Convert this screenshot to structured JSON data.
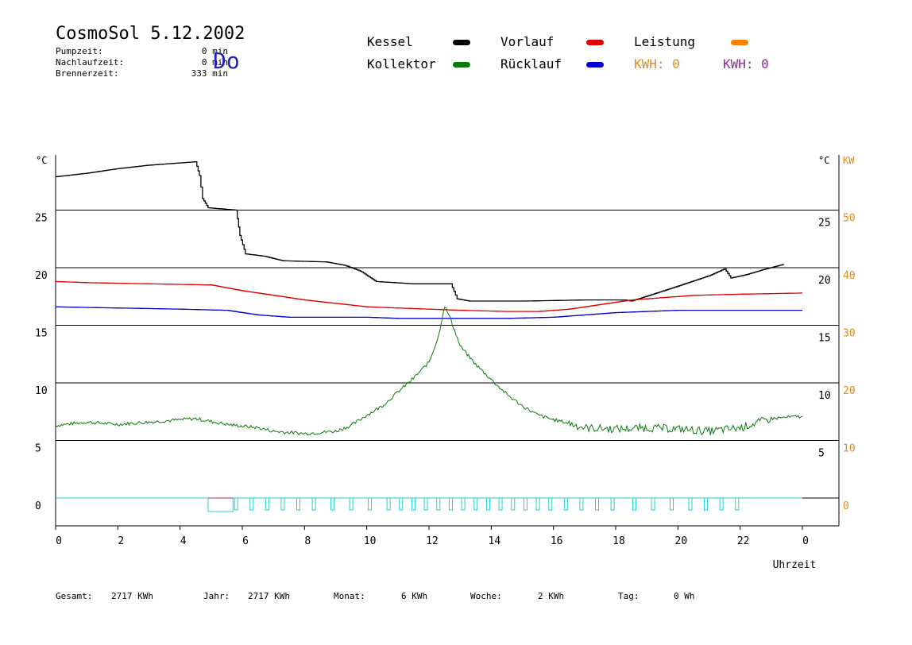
{
  "header": {
    "title": "CosmoSol 5.12.2002",
    "day": "Do",
    "stats": [
      {
        "label": "Pumpzeit:",
        "value": "0 min"
      },
      {
        "label": "Nachlaufzeit:",
        "value": "0 min"
      },
      {
        "label": "Brennerzeit:",
        "value": "333 min"
      }
    ]
  },
  "legend": {
    "items": [
      {
        "label": "Kessel",
        "color": "#000000"
      },
      {
        "label": "Vorlauf",
        "color": "#e00000"
      },
      {
        "label": "Leistung",
        "color": "#ff8000"
      },
      {
        "label": "Kollektor",
        "color": "#0a7a0a"
      },
      {
        "label": "Rücklauf",
        "color": "#0000d0"
      }
    ],
    "kwh1": "KWH: 0",
    "kwh1_color": "#e08a1e",
    "kwh2": "KWH: 0",
    "kwh2_color": "#8a2a9a"
  },
  "footer": {
    "gesamt_label": "Gesamt:",
    "gesamt_value": "2717 KWh",
    "jahr_label": "Jahr:",
    "jahr_value": "2717 KWh",
    "monat_label": "Monat:",
    "monat_value": "6 KWh",
    "woche_label": "Woche:",
    "woche_value": "2 KWh",
    "tag_label": "Tag:",
    "tag_value": "0 Wh"
  },
  "chart_data": {
    "type": "line",
    "xlabel": "Uhrzeit",
    "x_ticks": [
      "0",
      "2",
      "4",
      "6",
      "8",
      "10",
      "12",
      "14",
      "16",
      "18",
      "20",
      "22",
      "0"
    ],
    "xlim": [
      0,
      24
    ],
    "y_left_unit": "°C",
    "y_left_ticks": [
      "0",
      "5",
      "10",
      "15",
      "20",
      "25"
    ],
    "ylim": [
      0,
      30
    ],
    "y_right_unit": "°C",
    "y_right_ticks": [
      "5",
      "10",
      "15",
      "20",
      "25"
    ],
    "y_right2_unit": "KW",
    "y_right2_ticks": [
      "0",
      "10",
      "20",
      "30",
      "40",
      "50"
    ],
    "y2lim": [
      0,
      60
    ],
    "grid": "horizontal",
    "series": [
      {
        "name": "Kessel",
        "color": "#000000",
        "points": [
          [
            0,
            27.9
          ],
          [
            1,
            28.2
          ],
          [
            2,
            28.6
          ],
          [
            3,
            28.9
          ],
          [
            4.5,
            29.2
          ],
          [
            4.62,
            28.0
          ],
          [
            4.72,
            26.0
          ],
          [
            4.9,
            25.2
          ],
          [
            5.8,
            25.0
          ],
          [
            5.92,
            22.8
          ],
          [
            6.1,
            21.2
          ],
          [
            6.7,
            21.0
          ],
          [
            7.3,
            20.6
          ],
          [
            8.7,
            20.5
          ],
          [
            9.3,
            20.2
          ],
          [
            9.8,
            19.7
          ],
          [
            10.3,
            18.8
          ],
          [
            11.5,
            18.6
          ],
          [
            12.7,
            18.6
          ],
          [
            12.9,
            17.3
          ],
          [
            13.3,
            17.1
          ],
          [
            15.0,
            17.1
          ],
          [
            17.0,
            17.2
          ],
          [
            18.3,
            17.2
          ],
          [
            18.5,
            17.1
          ],
          [
            19.2,
            17.7
          ],
          [
            20.0,
            18.4
          ],
          [
            21.0,
            19.3
          ],
          [
            21.5,
            19.9
          ],
          [
            21.7,
            19.1
          ],
          [
            22.2,
            19.4
          ],
          [
            22.7,
            19.8
          ],
          [
            23.4,
            20.3
          ]
        ]
      },
      {
        "name": "Vorlauf",
        "color": "#e00000",
        "points": [
          [
            0,
            18.8
          ],
          [
            1,
            18.7
          ],
          [
            3,
            18.6
          ],
          [
            5.0,
            18.5
          ],
          [
            6.0,
            18.0
          ],
          [
            7.0,
            17.6
          ],
          [
            8.0,
            17.2
          ],
          [
            9.0,
            16.9
          ],
          [
            10.0,
            16.6
          ],
          [
            11.0,
            16.5
          ],
          [
            12.0,
            16.4
          ],
          [
            13.0,
            16.3
          ],
          [
            14.5,
            16.2
          ],
          [
            15.5,
            16.2
          ],
          [
            16.5,
            16.4
          ],
          [
            17.5,
            16.8
          ],
          [
            18.5,
            17.2
          ],
          [
            19.5,
            17.4
          ],
          [
            20.5,
            17.6
          ],
          [
            22.0,
            17.7
          ],
          [
            24,
            17.8
          ]
        ]
      },
      {
        "name": "Rücklauf",
        "color": "#0000d0",
        "points": [
          [
            0,
            16.6
          ],
          [
            2,
            16.5
          ],
          [
            4,
            16.4
          ],
          [
            5.5,
            16.3
          ],
          [
            6.5,
            15.9
          ],
          [
            7.5,
            15.7
          ],
          [
            9.0,
            15.7
          ],
          [
            10,
            15.7
          ],
          [
            11,
            15.6
          ],
          [
            12,
            15.6
          ],
          [
            13,
            15.6
          ],
          [
            14.5,
            15.6
          ],
          [
            16,
            15.7
          ],
          [
            17,
            15.9
          ],
          [
            18,
            16.1
          ],
          [
            19,
            16.2
          ],
          [
            20,
            16.3
          ],
          [
            22,
            16.3
          ],
          [
            24,
            16.3
          ]
        ]
      },
      {
        "name": "Kollektor",
        "color": "#0a7a0a",
        "noise": true,
        "points": [
          [
            0,
            6.3
          ],
          [
            1,
            6.6
          ],
          [
            2,
            6.4
          ],
          [
            3,
            6.6
          ],
          [
            4.5,
            6.9
          ],
          [
            5.5,
            6.4
          ],
          [
            6.5,
            6.1
          ],
          [
            7.0,
            5.8
          ],
          [
            8.0,
            5.6
          ],
          [
            9.0,
            5.8
          ],
          [
            9.5,
            6.3
          ],
          [
            10,
            7.2
          ],
          [
            10.5,
            8.0
          ],
          [
            11,
            9.2
          ],
          [
            11.5,
            10.4
          ],
          [
            12,
            11.8
          ],
          [
            12.3,
            14.0
          ],
          [
            12.5,
            16.7
          ],
          [
            12.7,
            15.5
          ],
          [
            13,
            13.2
          ],
          [
            13.5,
            11.6
          ],
          [
            14,
            10.3
          ],
          [
            14.5,
            9.0
          ],
          [
            15,
            8.0
          ],
          [
            15.5,
            7.2
          ],
          [
            16,
            6.8
          ],
          [
            16.5,
            6.5
          ],
          [
            17,
            6.1
          ],
          [
            18,
            6.0
          ],
          [
            19,
            6.1
          ],
          [
            20,
            6.0
          ],
          [
            21,
            5.8
          ],
          [
            22,
            6.1
          ],
          [
            23,
            6.9
          ],
          [
            24,
            7.1
          ]
        ]
      }
    ],
    "leistung_pulses": [
      5.8,
      6.3,
      6.8,
      7.3,
      7.8,
      8.3,
      8.9,
      9.5,
      10.1,
      10.7,
      11.1,
      11.5,
      11.9,
      12.3,
      12.7,
      13.1,
      13.5,
      13.9,
      14.3,
      14.7,
      15.1,
      15.5,
      15.9,
      16.4,
      16.9,
      17.4,
      17.9,
      18.6,
      19.2,
      19.8,
      20.4,
      20.9,
      21.4,
      21.9
    ],
    "leistung_block": [
      4.9,
      5.7
    ]
  }
}
